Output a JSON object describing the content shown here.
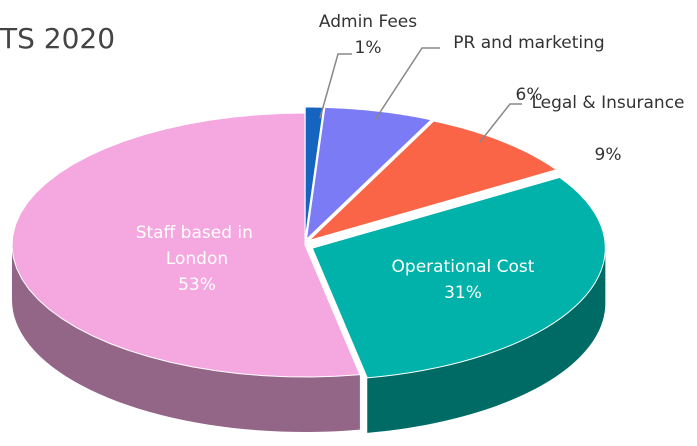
{
  "chart_data": {
    "type": "pie3d",
    "title": "TS 2020",
    "categories": [
      "Admin Fees",
      "PR and marketing",
      "Legal & Insurance",
      "Operational Cost",
      "Staff based in London"
    ],
    "values": [
      1,
      6,
      9,
      31,
      53
    ],
    "value_labels": [
      "1%",
      "6%",
      "9%",
      "31%",
      "53%"
    ],
    "colors": [
      "#1565c0",
      "#7b7bf5",
      "#f96546",
      "#00b2a9",
      "#f5a8e0"
    ]
  }
}
